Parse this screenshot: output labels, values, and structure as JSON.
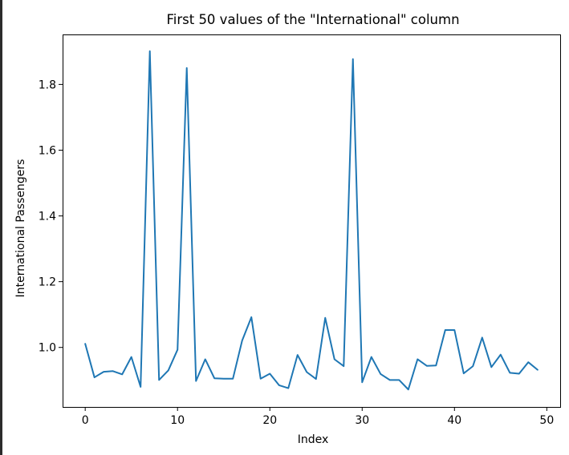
{
  "chart_data": {
    "type": "line",
    "title": "First 50 values of the \"International\" column",
    "xlabel": "Index",
    "ylabel": "International Passengers",
    "xlim": [
      -2.45,
      51.45
    ],
    "ylim": [
      0.819,
      1.952
    ],
    "grid": false,
    "line_color": "#1f77b4",
    "x_ticks": [
      0,
      10,
      20,
      30,
      40,
      50
    ],
    "x_tick_labels": [
      "0",
      "10",
      "20",
      "30",
      "40",
      "50"
    ],
    "y_ticks": [
      1.0,
      1.2,
      1.4,
      1.6,
      1.8
    ],
    "y_tick_labels": [
      "1.0",
      "1.2",
      "1.4",
      "1.6",
      "1.8"
    ],
    "series": [
      {
        "x": [
          0,
          1,
          2,
          3,
          4,
          5,
          6,
          7,
          8,
          9,
          10,
          11,
          12,
          13,
          14,
          15,
          16,
          17,
          18,
          19,
          20,
          21,
          22,
          23,
          24,
          25,
          26,
          27,
          28,
          29,
          30,
          31,
          32,
          33,
          34,
          35,
          36,
          37,
          38,
          39,
          40,
          41,
          42,
          43,
          44,
          45,
          46,
          47,
          48,
          49
        ],
        "values": [
          1.011,
          0.909,
          0.926,
          0.928,
          0.918,
          0.971,
          0.88,
          1.901,
          0.901,
          0.93,
          0.993,
          1.85,
          0.898,
          0.964,
          0.906,
          0.905,
          0.905,
          1.021,
          1.092,
          0.905,
          0.92,
          0.885,
          0.876,
          0.977,
          0.925,
          0.904,
          1.09,
          0.964,
          0.943,
          1.877,
          0.894,
          0.971,
          0.919,
          0.901,
          0.901,
          0.872,
          0.964,
          0.944,
          0.945,
          1.053,
          1.053,
          0.921,
          0.943,
          1.03,
          0.94,
          0.978,
          0.923,
          0.92,
          0.955,
          0.932
        ]
      }
    ]
  }
}
